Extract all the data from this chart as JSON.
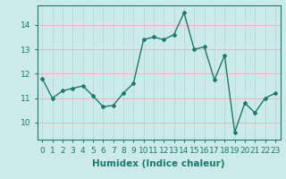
{
  "x": [
    0,
    1,
    2,
    3,
    4,
    5,
    6,
    7,
    8,
    9,
    10,
    11,
    12,
    13,
    14,
    15,
    16,
    17,
    18,
    19,
    20,
    21,
    22,
    23
  ],
  "y": [
    11.8,
    11.0,
    11.3,
    11.4,
    11.5,
    11.1,
    10.65,
    10.7,
    11.2,
    11.6,
    13.4,
    13.5,
    13.4,
    13.6,
    14.5,
    13.0,
    13.1,
    11.75,
    12.75,
    9.6,
    10.8,
    10.4,
    11.0,
    11.2
  ],
  "line_color": "#1a7a6e",
  "marker": "D",
  "marker_size": 2.0,
  "line_width": 1.0,
  "bg_color": "#cceaea",
  "grid_color_h": "#e8b0b0",
  "grid_color_v": "#b8d8d8",
  "xlabel": "Humidex (Indice chaleur)",
  "xlabel_fontsize": 7.5,
  "tick_fontsize": 6.5,
  "ylim": [
    9.3,
    14.8
  ],
  "xlim": [
    -0.5,
    23.5
  ],
  "yticks": [
    10,
    11,
    12,
    13,
    14
  ],
  "xticks": [
    0,
    1,
    2,
    3,
    4,
    5,
    6,
    7,
    8,
    9,
    10,
    11,
    12,
    13,
    14,
    15,
    16,
    17,
    18,
    19,
    20,
    21,
    22,
    23
  ]
}
